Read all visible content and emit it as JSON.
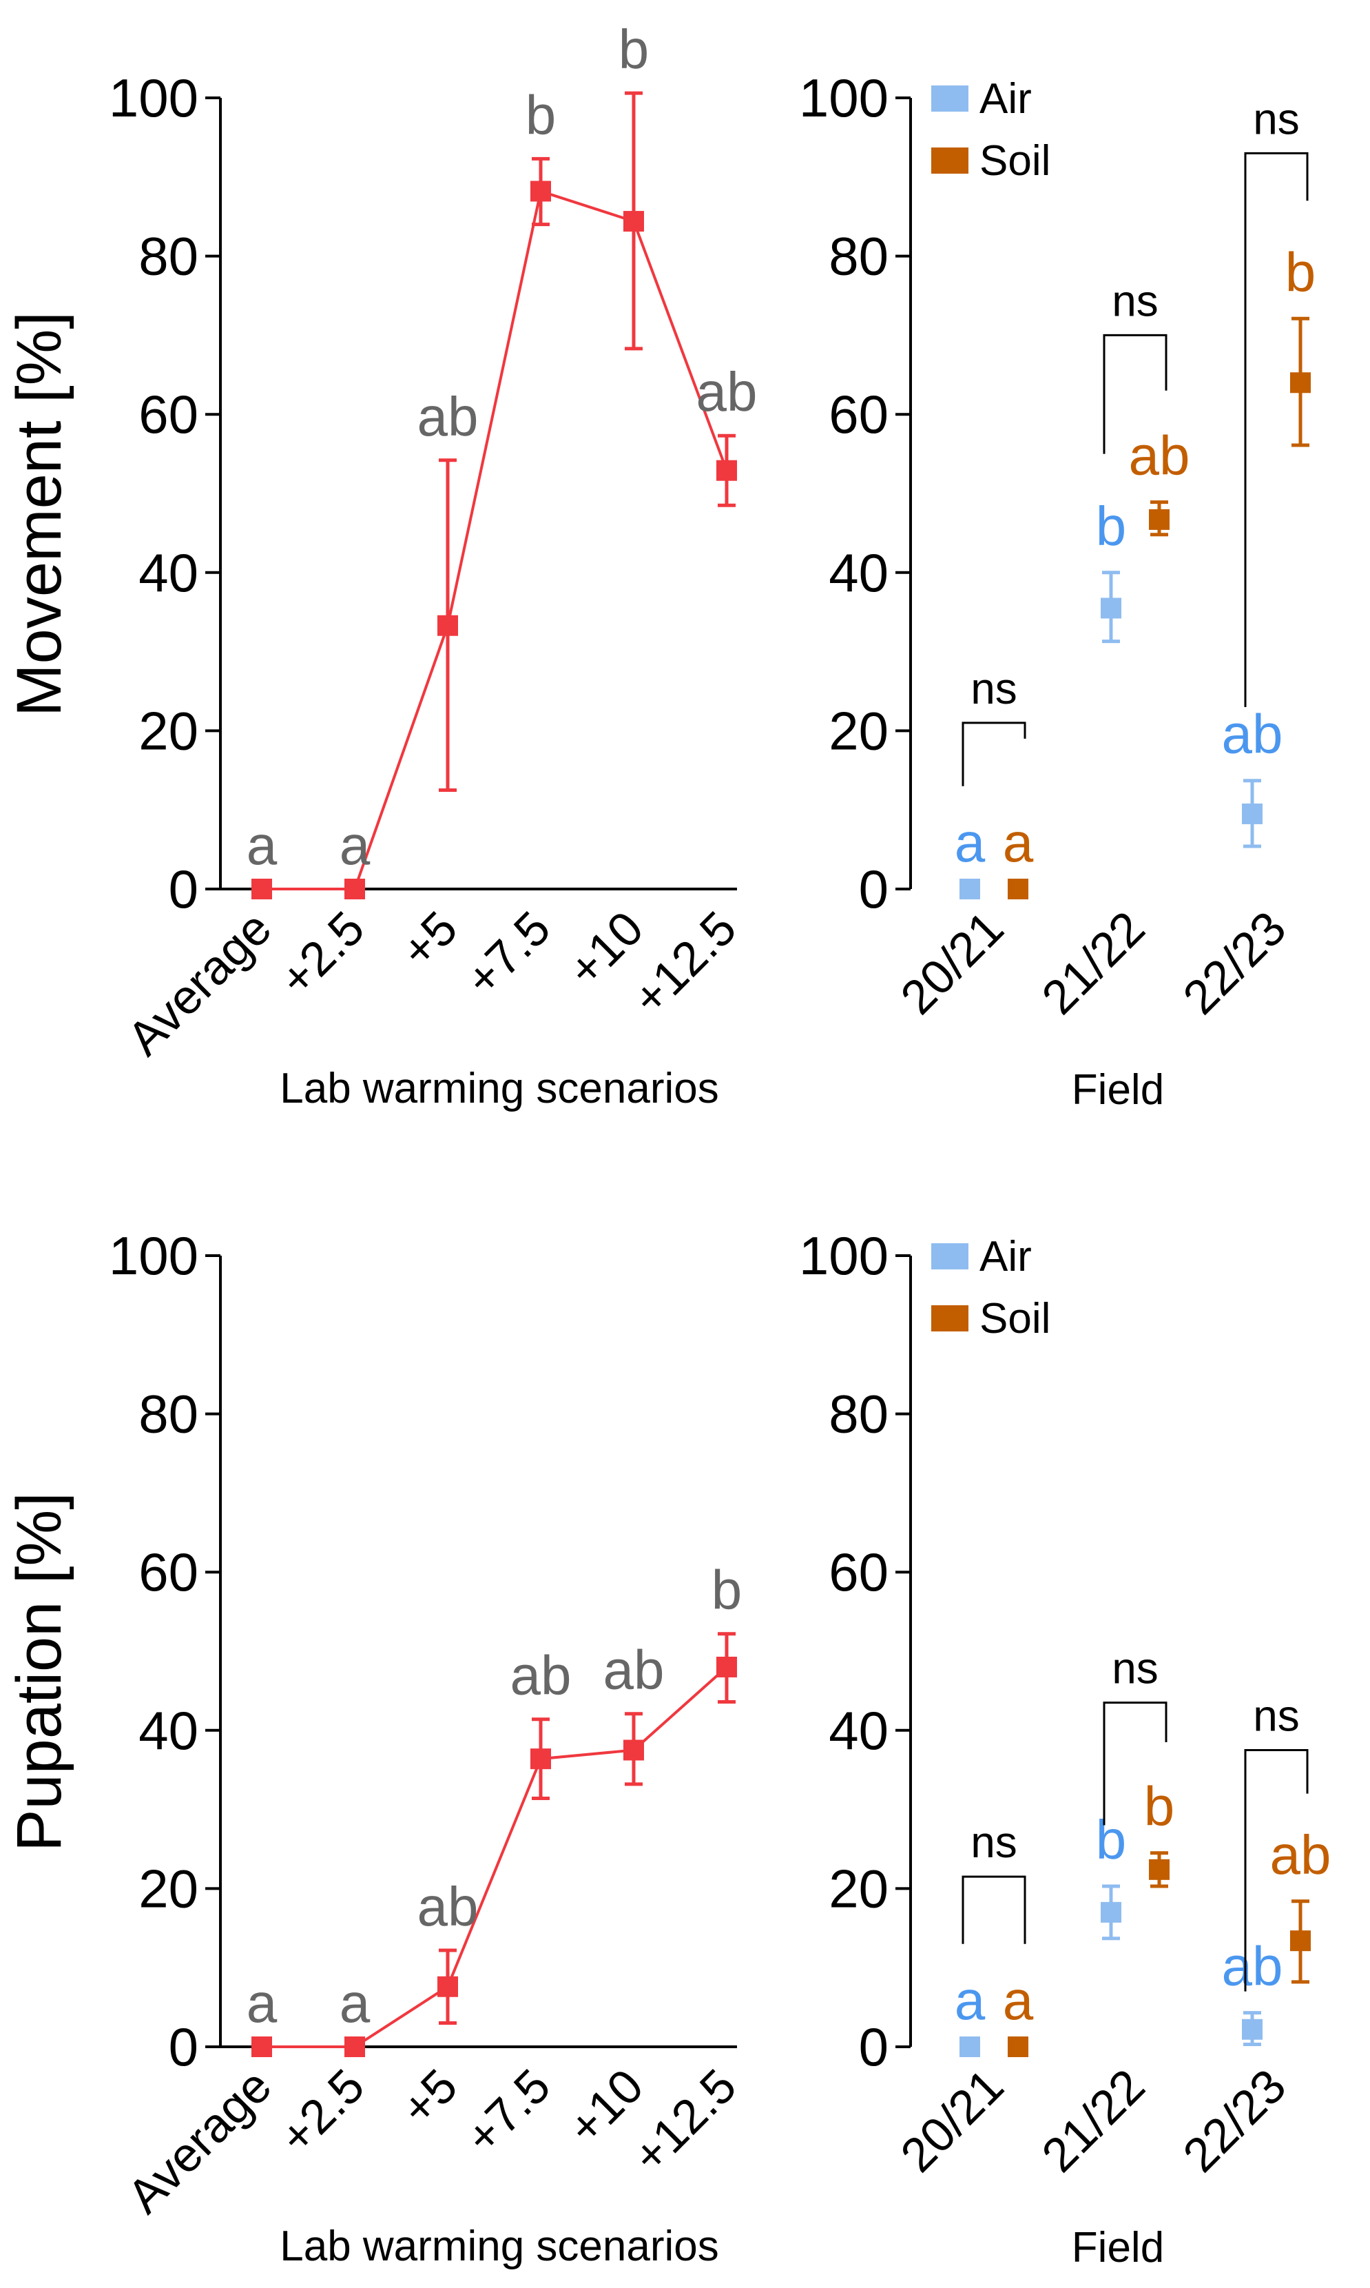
{
  "colors": {
    "lab": "#f0383f",
    "air": "#8fbcf0",
    "soil": "#c25e00",
    "letter_gray": "#666666",
    "air_letter": "#4b97ef",
    "soil_letter": "#c25e00"
  },
  "chart_data": [
    {
      "id": "movement-lab",
      "type": "line",
      "panel": "top-left",
      "ylabel": "Movement [%]",
      "xlabel": "Lab warming scenarios",
      "ylim": [
        0,
        100
      ],
      "yticks": [
        0,
        20,
        40,
        60,
        80,
        100
      ],
      "categories": [
        "Average",
        "+2.5",
        "+5",
        "+7.5",
        "+10",
        "+12.5"
      ],
      "series": [
        {
          "name": "Lab",
          "color_key": "lab",
          "values": [
            0,
            0,
            33.3,
            88.2,
            84.4,
            52.9
          ],
          "err_low": [
            0,
            0,
            12.5,
            84.0,
            68.3,
            48.5
          ],
          "err_high": [
            0,
            0,
            54.2,
            92.3,
            100.6,
            57.3
          ],
          "letters": [
            "a",
            "a",
            "ab",
            "b",
            "b",
            "ab"
          ]
        }
      ]
    },
    {
      "id": "movement-field",
      "type": "scatter",
      "panel": "top-right",
      "xlabel": "Field",
      "ylim": [
        0,
        100
      ],
      "yticks": [
        0,
        20,
        40,
        60,
        80,
        100
      ],
      "categories": [
        "20/21",
        "21/22",
        "22/23"
      ],
      "legend": [
        "Air",
        "Soil"
      ],
      "series": [
        {
          "name": "Air",
          "color_key": "air",
          "letter_color_key": "air_letter",
          "values": [
            0,
            35.5,
            9.5
          ],
          "err_low": [
            0,
            31.3,
            5.4
          ],
          "err_high": [
            0,
            40.0,
            13.7
          ],
          "letters": [
            "a",
            "b",
            "ab"
          ]
        },
        {
          "name": "Soil",
          "color_key": "soil",
          "letter_color_key": "soil_letter",
          "values": [
            0,
            46.7,
            64.0
          ],
          "err_low": [
            0,
            44.8,
            56.1
          ],
          "err_high": [
            0,
            48.9,
            72.1
          ],
          "letters": [
            "a",
            "ab",
            "b"
          ]
        }
      ],
      "comparisons": [
        {
          "index": 0,
          "label": "ns",
          "bracket_y": 21.0,
          "air_y": 13.0,
          "soil_y": 19.0
        },
        {
          "index": 1,
          "label": "ns",
          "bracket_y": 70.0,
          "air_y": 55.0,
          "soil_y": 63.0
        },
        {
          "index": 2,
          "label": "ns",
          "bracket_y": 93.0,
          "air_y": 23.0,
          "soil_y": 87.0
        }
      ]
    },
    {
      "id": "pupation-lab",
      "type": "line",
      "panel": "bottom-left",
      "ylabel": "Pupation [%]",
      "xlabel": "Lab warming scenarios",
      "ylim": [
        0,
        100
      ],
      "yticks": [
        0,
        20,
        40,
        60,
        80,
        100
      ],
      "categories": [
        "Average",
        "+2.5",
        "+5",
        "+7.5",
        "+10",
        "+12.5"
      ],
      "series": [
        {
          "name": "Lab",
          "color_key": "lab",
          "values": [
            0,
            0,
            7.6,
            36.4,
            37.5,
            48.0
          ],
          "err_low": [
            0,
            0,
            3.0,
            31.4,
            33.2,
            43.6
          ],
          "err_high": [
            0,
            0,
            12.2,
            41.4,
            42.1,
            52.2
          ],
          "letters": [
            "a",
            "a",
            "ab",
            "ab",
            "ab",
            "b"
          ]
        }
      ]
    },
    {
      "id": "pupation-field",
      "type": "scatter",
      "panel": "bottom-right",
      "xlabel": "Field",
      "ylim": [
        0,
        100
      ],
      "yticks": [
        0,
        20,
        40,
        60,
        80,
        100
      ],
      "categories": [
        "20/21",
        "21/22",
        "22/23"
      ],
      "legend": [
        "Air",
        "Soil"
      ],
      "series": [
        {
          "name": "Air",
          "color_key": "air",
          "letter_color_key": "air_letter",
          "values": [
            0,
            17.0,
            2.2
          ],
          "err_low": [
            0,
            13.7,
            0.3
          ],
          "err_high": [
            0,
            20.3,
            4.3
          ],
          "letters": [
            "a",
            "b",
            "ab"
          ]
        },
        {
          "name": "Soil",
          "color_key": "soil",
          "letter_color_key": "soil_letter",
          "values": [
            0,
            22.4,
            13.4
          ],
          "err_low": [
            0,
            20.3,
            8.2
          ],
          "err_high": [
            0,
            24.5,
            18.4
          ],
          "letters": [
            "a",
            "b",
            "ab"
          ]
        }
      ],
      "comparisons": [
        {
          "index": 0,
          "label": "ns",
          "bracket_y": 21.5,
          "air_y": 13.0,
          "soil_y": 13.0
        },
        {
          "index": 1,
          "label": "ns",
          "bracket_y": 43.5,
          "air_y": 28.0,
          "soil_y": 38.5
        },
        {
          "index": 2,
          "label": "ns",
          "bracket_y": 37.5,
          "air_y": 7.0,
          "soil_y": 32.0
        }
      ]
    }
  ]
}
